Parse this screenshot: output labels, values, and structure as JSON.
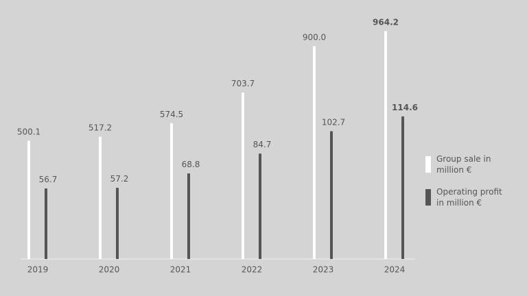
{
  "chart_data": {
    "type": "bar",
    "categories": [
      "2019",
      "2020",
      "2021",
      "2022",
      "2023",
      "2024"
    ],
    "series": [
      {
        "name": "Group sale in million €",
        "color": "#ffffff",
        "values": [
          500.1,
          517.2,
          574.5,
          703.7,
          900.0,
          964.2
        ],
        "value_labels": [
          "500.1",
          "517.2",
          "574.5",
          "703.7",
          "900.0",
          "964.2"
        ]
      },
      {
        "name": "Operating profit in million €",
        "color": "#555555",
        "axis": "y2",
        "values": [
          56.7,
          57.2,
          68.8,
          84.7,
          102.7,
          114.6
        ],
        "value_labels": [
          "56.7",
          "57.2",
          "68.8",
          "84.7",
          "102.7",
          "114.6"
        ]
      }
    ],
    "ylim": [
      0,
      1000
    ],
    "y2lim": [
      0,
      190
    ],
    "legend": "right"
  }
}
